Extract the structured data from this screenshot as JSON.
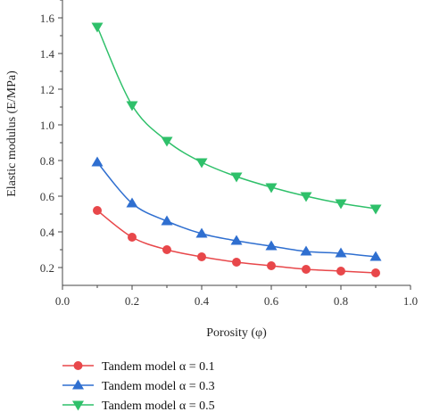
{
  "chart_data": {
    "type": "line",
    "x": [
      0.1,
      0.2,
      0.3,
      0.4,
      0.5,
      0.6,
      0.7,
      0.8,
      0.9
    ],
    "xlim": [
      0.0,
      1.0
    ],
    "ylim": [
      0.1,
      1.7
    ],
    "xticks": [
      "0.0",
      "0.2",
      "0.4",
      "0.6",
      "0.8",
      "1.0"
    ],
    "yticks": [
      "0.2",
      "0.4",
      "0.6",
      "0.8",
      "1.0",
      "1.2",
      "1.4",
      "1.6"
    ],
    "xlabel": "Porosity (φ)",
    "ylabel": "Elastic modulus (E/MPa)",
    "grid": false,
    "legend_position": "bottom-left, below plot",
    "series": [
      {
        "name": "Tandem model α = 0.1",
        "marker": "circle",
        "color": "#e8474a",
        "values": [
          0.52,
          0.37,
          0.3,
          0.26,
          0.23,
          0.21,
          0.19,
          0.18,
          0.17
        ]
      },
      {
        "name": "Tandem model α = 0.3",
        "marker": "triangle-up",
        "color": "#2f6fd0",
        "values": [
          0.79,
          0.56,
          0.46,
          0.39,
          0.35,
          0.32,
          0.29,
          0.28,
          0.26
        ]
      },
      {
        "name": "Tandem model α = 0.5",
        "marker": "triangle-down",
        "color": "#2fc06a",
        "values": [
          1.55,
          1.11,
          0.91,
          0.79,
          0.71,
          0.65,
          0.6,
          0.56,
          0.53
        ]
      }
    ]
  }
}
